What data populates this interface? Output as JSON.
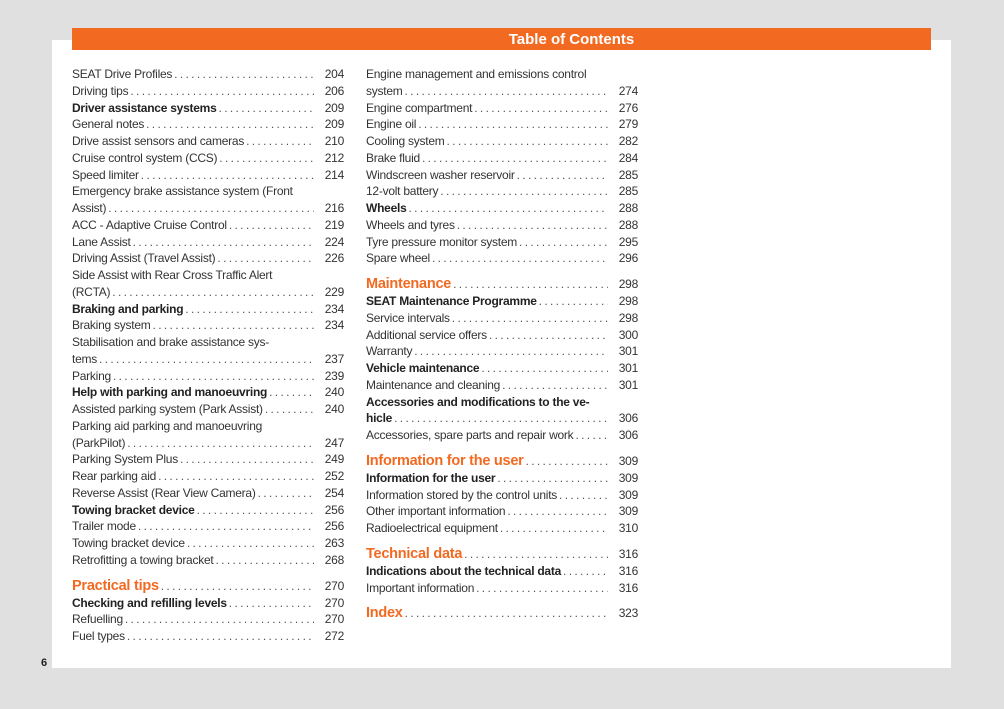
{
  "header": {
    "title": "Table of Contents"
  },
  "page_number": "6",
  "accent_color": "#f26a21",
  "left_column": [
    {
      "lines": [],
      "label": "SEAT Drive Profiles",
      "page": "204",
      "style": "normal"
    },
    {
      "lines": [],
      "label": "Driving tips",
      "page": "206",
      "style": "normal"
    },
    {
      "lines": [],
      "label": "Driver assistance systems",
      "page": "209",
      "style": "bold"
    },
    {
      "lines": [],
      "label": "General notes",
      "page": "209",
      "style": "normal"
    },
    {
      "lines": [],
      "label": "Drive assist sensors and cameras",
      "page": "210",
      "style": "normal"
    },
    {
      "lines": [],
      "label": "Cruise control system (CCS)",
      "page": "212",
      "style": "normal"
    },
    {
      "lines": [],
      "label": "Speed limiter",
      "page": "214",
      "style": "normal"
    },
    {
      "lines": [
        "Emergency brake assistance system (Front"
      ],
      "label": "Assist)",
      "page": "216",
      "style": "normal"
    },
    {
      "lines": [],
      "label": "ACC - Adaptive Cruise Control",
      "page": "219",
      "style": "normal"
    },
    {
      "lines": [],
      "label": "Lane Assist",
      "page": "224",
      "style": "normal"
    },
    {
      "lines": [],
      "label": "Driving Assist (Travel Assist)",
      "page": "226",
      "style": "normal"
    },
    {
      "lines": [
        "Side Assist with Rear Cross Traffic Alert"
      ],
      "label": "(RCTA)",
      "page": "229",
      "style": "normal"
    },
    {
      "lines": [],
      "label": "Braking and parking",
      "page": "234",
      "style": "bold"
    },
    {
      "lines": [],
      "label": "Braking system",
      "page": "234",
      "style": "normal"
    },
    {
      "lines": [
        "Stabilisation and brake assistance sys-"
      ],
      "label": "tems",
      "page": "237",
      "style": "normal"
    },
    {
      "lines": [],
      "label": "Parking",
      "page": "239",
      "style": "normal"
    },
    {
      "lines": [],
      "label": "Help with parking and manoeuvring",
      "page": "240",
      "style": "bold"
    },
    {
      "lines": [],
      "label": "Assisted parking system (Park Assist)",
      "page": "240",
      "style": "normal"
    },
    {
      "lines": [
        "Parking aid parking and manoeuvring"
      ],
      "label": "(ParkPilot)",
      "page": "247",
      "style": "normal"
    },
    {
      "lines": [],
      "label": "Parking System Plus",
      "page": "249",
      "style": "normal"
    },
    {
      "lines": [],
      "label": "Rear parking aid",
      "page": "252",
      "style": "normal"
    },
    {
      "lines": [],
      "label": "Reverse Assist (Rear View Camera)",
      "page": "254",
      "style": "normal"
    },
    {
      "lines": [],
      "label": "Towing bracket device",
      "page": "256",
      "style": "bold"
    },
    {
      "lines": [],
      "label": "Trailer mode",
      "page": "256",
      "style": "normal"
    },
    {
      "lines": [],
      "label": "Towing bracket device",
      "page": "263",
      "style": "normal"
    },
    {
      "lines": [],
      "label": "Retrofitting a towing bracket",
      "page": "268",
      "style": "normal"
    },
    {
      "lines": [],
      "label": "Practical tips",
      "page": "270",
      "style": "heading"
    },
    {
      "lines": [],
      "label": "Checking and refilling levels",
      "page": "270",
      "style": "bold"
    },
    {
      "lines": [],
      "label": "Refuelling",
      "page": "270",
      "style": "normal"
    },
    {
      "lines": [],
      "label": "Fuel types",
      "page": "272",
      "style": "normal"
    }
  ],
  "right_column": [
    {
      "lines": [
        "Engine management and emissions control"
      ],
      "label": "system",
      "page": "274",
      "style": "normal"
    },
    {
      "lines": [],
      "label": "Engine compartment",
      "page": "276",
      "style": "normal"
    },
    {
      "lines": [],
      "label": "Engine oil",
      "page": "279",
      "style": "normal"
    },
    {
      "lines": [],
      "label": "Cooling system",
      "page": "282",
      "style": "normal"
    },
    {
      "lines": [],
      "label": "Brake fluid",
      "page": "284",
      "style": "normal"
    },
    {
      "lines": [],
      "label": "Windscreen washer reservoir",
      "page": "285",
      "style": "normal"
    },
    {
      "lines": [],
      "label": "12-volt battery",
      "page": "285",
      "style": "normal"
    },
    {
      "lines": [],
      "label": "Wheels",
      "page": "288",
      "style": "bold"
    },
    {
      "lines": [],
      "label": "Wheels and tyres",
      "page": "288",
      "style": "normal"
    },
    {
      "lines": [],
      "label": "Tyre pressure monitor system",
      "page": "295",
      "style": "normal"
    },
    {
      "lines": [],
      "label": "Spare wheel",
      "page": "296",
      "style": "normal"
    },
    {
      "lines": [],
      "label": "Maintenance",
      "page": "298",
      "style": "heading"
    },
    {
      "lines": [],
      "label": "SEAT Maintenance Programme",
      "page": "298",
      "style": "bold"
    },
    {
      "lines": [],
      "label": "Service intervals",
      "page": "298",
      "style": "normal"
    },
    {
      "lines": [],
      "label": "Additional service offers",
      "page": "300",
      "style": "normal"
    },
    {
      "lines": [],
      "label": "Warranty",
      "page": "301",
      "style": "normal"
    },
    {
      "lines": [],
      "label": "Vehicle maintenance",
      "page": "301",
      "style": "bold"
    },
    {
      "lines": [],
      "label": "Maintenance and cleaning",
      "page": "301",
      "style": "normal"
    },
    {
      "lines": [
        "Accessories and modifications to the ve-"
      ],
      "label": "hicle",
      "page": "306",
      "style": "bold"
    },
    {
      "lines": [],
      "label": "Accessories, spare parts and repair work",
      "page": "306",
      "style": "normal"
    },
    {
      "lines": [],
      "label": "Information for the user",
      "page": "309",
      "style": "heading"
    },
    {
      "lines": [],
      "label": "Information for the user",
      "page": "309",
      "style": "bold"
    },
    {
      "lines": [],
      "label": "Information stored by the control units",
      "page": "309",
      "style": "normal"
    },
    {
      "lines": [],
      "label": "Other important information",
      "page": "309",
      "style": "normal"
    },
    {
      "lines": [],
      "label": "Radioelectrical equipment",
      "page": "310",
      "style": "normal"
    },
    {
      "lines": [],
      "label": "Technical data",
      "page": "316",
      "style": "heading"
    },
    {
      "lines": [],
      "label": "Indications about the technical data",
      "page": "316",
      "style": "bold"
    },
    {
      "lines": [],
      "label": "Important information",
      "page": "316",
      "style": "normal"
    },
    {
      "lines": [],
      "label": "Index",
      "page": "323",
      "style": "heading"
    }
  ]
}
